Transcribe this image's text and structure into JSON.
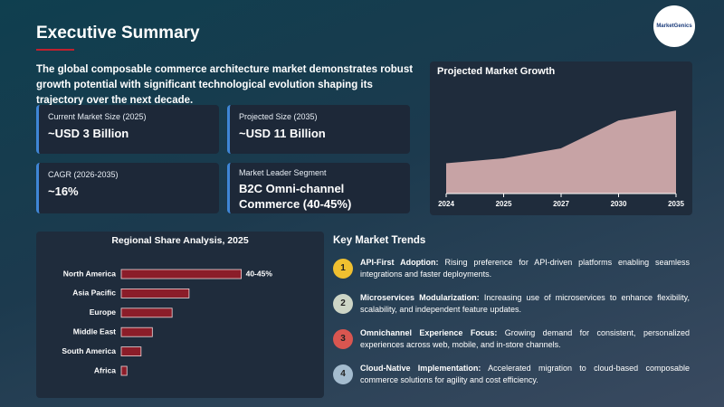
{
  "header": {
    "title": "Executive Summary",
    "intro": "The global composable commerce architecture market demonstrates robust growth potential with significant technological evolution shaping its trajectory over the next decade."
  },
  "logo": {
    "name": "MarketGenics"
  },
  "stats": [
    {
      "label": "Current Market Size (2025)",
      "value": "~USD 3 Billion"
    },
    {
      "label": "Projected Size (2035)",
      "value": "~USD 11 Billion"
    },
    {
      "label": "CAGR (2026-2035)",
      "value": "~16%"
    },
    {
      "label": "Market Leader Segment",
      "value": "B2C Omni-channel Commerce (40-45%)"
    }
  ],
  "trends": {
    "title": "Key Market Trends",
    "items": [
      {
        "number": "1",
        "color": "#f0c030",
        "name": "API-First Adoption:",
        "text": "Rising preference for API-driven platforms enabling seamless integrations and faster deployments."
      },
      {
        "number": "2",
        "color": "#cdd5c6",
        "name": "Microservices Modularization:",
        "text": "Increasing use of microservices to enhance flexibility, scalability, and independent feature updates."
      },
      {
        "number": "3",
        "color": "#d95650",
        "name": "Omnichannel Experience Focus:",
        "text": "Growing demand for consistent, personalized experiences across web, mobile, and in-store channels."
      },
      {
        "number": "4",
        "color": "#a4bccf",
        "name": "Cloud-Native Implementation:",
        "text": "Accelerated migration to cloud-based composable commerce solutions for agility and cost efficiency."
      }
    ]
  },
  "chart_data": [
    {
      "type": "area",
      "title": "Projected Market Growth",
      "categories": [
        "2024",
        "2025",
        "2027",
        "2030",
        "2035"
      ],
      "values": [
        30,
        35,
        45,
        73,
        83
      ],
      "color": "#c7a3a5",
      "ylim": [
        0,
        100
      ]
    },
    {
      "type": "hbar",
      "title": "Regional Share Analysis, 2025",
      "categories": [
        "North America",
        "Asia Pacific",
        "Europe",
        "Middle East",
        "South America",
        "Africa"
      ],
      "values": [
        42.5,
        24,
        18,
        11,
        7,
        2
      ],
      "value_labels": [
        "40-45%",
        null,
        null,
        null,
        null,
        null
      ],
      "color": "#8b1d29",
      "xlim": [
        0,
        50
      ]
    }
  ]
}
